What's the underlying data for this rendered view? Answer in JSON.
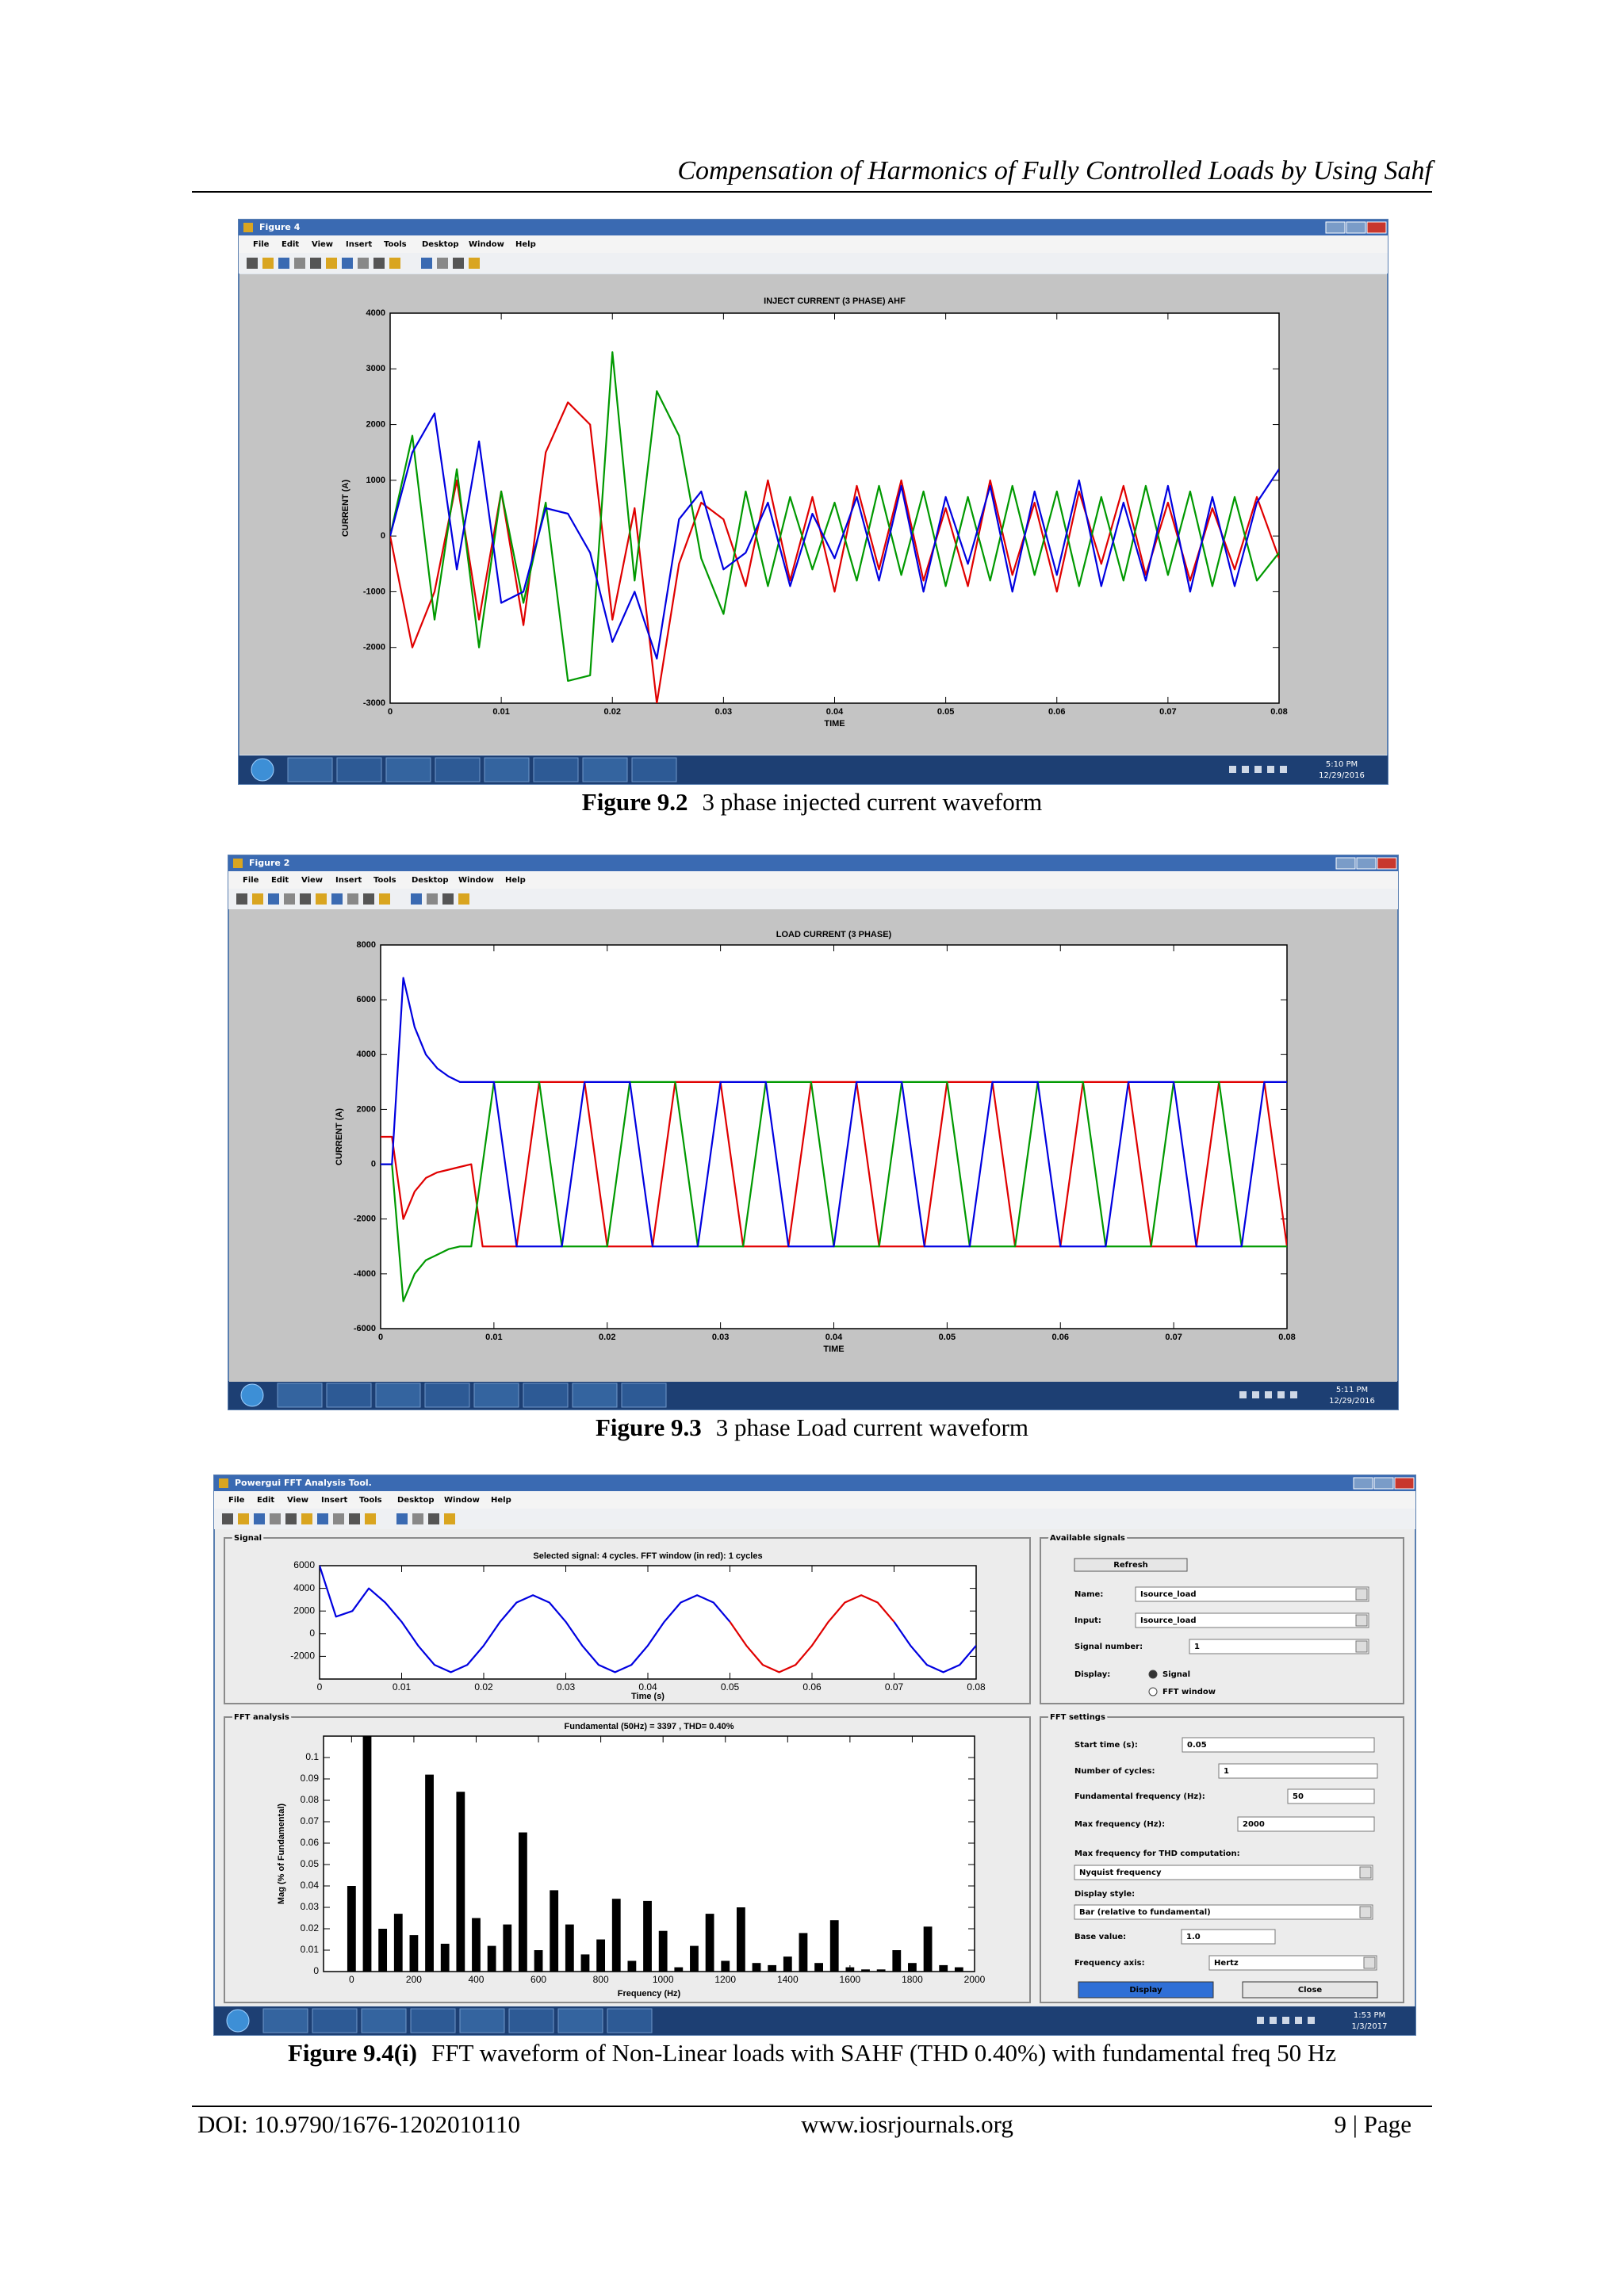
{
  "header": {
    "title": "Compensation of Harmonics of Fully Controlled Loads by Using Sahf"
  },
  "menu": [
    "File",
    "Edit",
    "View",
    "Insert",
    "Tools",
    "Desktop",
    "Window",
    "Help"
  ],
  "windows": [
    {
      "title": "Figure 4",
      "time": "5:10 PM",
      "date": "12/29/2016"
    },
    {
      "title": "Figure 2",
      "time": "5:11 PM",
      "date": "12/29/2016"
    },
    {
      "title": "Powergui FFT Analysis Tool.",
      "time": "1:53 PM",
      "date": "1/3/2017"
    }
  ],
  "chart_data": [
    {
      "type": "line",
      "title": "INJECT CURRENT (3 PHASE) AHF",
      "xlabel": "TIME",
      "ylabel": "CURRENT (A)",
      "x": [
        0,
        0.002,
        0.004,
        0.006,
        0.008,
        0.01,
        0.012,
        0.014,
        0.016,
        0.018,
        0.02,
        0.022,
        0.024,
        0.026,
        0.028,
        0.03,
        0.032,
        0.034,
        0.036,
        0.038,
        0.04,
        0.042,
        0.044,
        0.046,
        0.048,
        0.05,
        0.052,
        0.054,
        0.056,
        0.058,
        0.06,
        0.062,
        0.064,
        0.066,
        0.068,
        0.07,
        0.072,
        0.074,
        0.076,
        0.078,
        0.08
      ],
      "series": [
        {
          "color": "#e00000",
          "values": [
            0,
            -2000,
            -1000,
            1000,
            -1500,
            800,
            -1600,
            1500,
            2400,
            2000,
            -1500,
            500,
            -3000,
            -500,
            600,
            300,
            -900,
            1000,
            -800,
            700,
            -1000,
            900,
            -600,
            1000,
            -800,
            500,
            -900,
            1000,
            -700,
            600,
            -1000,
            800,
            -500,
            900,
            -700,
            600,
            -800,
            500,
            -600,
            700,
            -400
          ]
        },
        {
          "color": "#009900",
          "values": [
            0,
            1800,
            -1500,
            1200,
            -2000,
            800,
            -1200,
            600,
            -2600,
            -2500,
            3300,
            -800,
            2600,
            1800,
            -400,
            -1400,
            800,
            -900,
            700,
            -600,
            600,
            -800,
            900,
            -700,
            800,
            -900,
            700,
            -800,
            900,
            -700,
            800,
            -900,
            700,
            -800,
            900,
            -700,
            800,
            -900,
            700,
            -800,
            -300
          ]
        },
        {
          "color": "#0000e0",
          "values": [
            0,
            1500,
            2200,
            -600,
            1700,
            -1200,
            -1000,
            500,
            400,
            -300,
            -1900,
            -1000,
            -2200,
            300,
            800,
            -600,
            -300,
            600,
            -900,
            400,
            -400,
            700,
            -800,
            900,
            -1000,
            700,
            -500,
            900,
            -1000,
            800,
            -700,
            1000,
            -900,
            600,
            -800,
            900,
            -1000,
            700,
            -900,
            600,
            1200
          ]
        }
      ],
      "xlim": [
        0,
        0.08
      ],
      "ylim": [
        -3000,
        4000
      ],
      "xticks": [
        0,
        0.01,
        0.02,
        0.03,
        0.04,
        0.05,
        0.06,
        0.07,
        0.08
      ],
      "yticks": [
        -3000,
        -2000,
        -1000,
        0,
        1000,
        2000,
        3000,
        4000
      ]
    },
    {
      "type": "line",
      "title": "LOAD CURRENT (3 PHASE)",
      "xlabel": "TIME",
      "ylabel": "CURRENT (A)",
      "x": [
        0,
        0.001,
        0.002,
        0.003,
        0.004,
        0.005,
        0.006,
        0.007,
        0.008,
        0.009,
        0.01,
        0.011,
        0.012,
        0.013,
        0.014,
        0.015,
        0.016,
        0.017,
        0.018,
        0.019,
        0.02,
        0.021,
        0.022,
        0.023,
        0.024,
        0.025,
        0.026,
        0.027,
        0.028,
        0.029,
        0.03,
        0.031,
        0.032,
        0.033,
        0.034,
        0.035,
        0.036,
        0.037,
        0.038,
        0.039,
        0.04,
        0.041,
        0.042,
        0.043,
        0.044,
        0.045,
        0.046,
        0.047,
        0.048,
        0.049,
        0.05,
        0.051,
        0.052,
        0.053,
        0.054,
        0.055,
        0.056,
        0.057,
        0.058,
        0.059,
        0.06,
        0.061,
        0.062,
        0.063,
        0.064,
        0.065,
        0.066,
        0.067,
        0.068,
        0.069,
        0.07,
        0.071,
        0.072,
        0.073,
        0.074,
        0.075,
        0.076,
        0.077,
        0.078,
        0.079,
        0.08
      ],
      "series": [
        {
          "color": "#e00000",
          "values": [
            1000,
            1000,
            -2000,
            -1000,
            -500,
            -300,
            -200,
            -100,
            0,
            -3000,
            -3000,
            -3000,
            -3000,
            0,
            3000,
            3000,
            3000,
            3000,
            3000,
            0,
            -3000,
            -3000,
            -3000,
            -3000,
            -3000,
            0,
            3000,
            3000,
            3000,
            3000,
            3000,
            0,
            -3000,
            -3000,
            -3000,
            -3000,
            -3000,
            0,
            3000,
            3000,
            3000,
            3000,
            3000,
            0,
            -3000,
            -3000,
            -3000,
            -3000,
            -3000,
            0,
            3000,
            3000,
            3000,
            3000,
            3000,
            0,
            -3000,
            -3000,
            -3000,
            -3000,
            -3000,
            0,
            3000,
            3000,
            3000,
            3000,
            3000,
            0,
            -3000,
            -3000,
            -3000,
            -3000,
            -3000,
            0,
            3000,
            3000,
            3000,
            3000,
            3000,
            0,
            -3000
          ]
        },
        {
          "color": "#009900",
          "values": [
            0,
            0,
            -5000,
            -4000,
            -3500,
            -3300,
            -3100,
            -3000,
            -3000,
            0,
            3000,
            3000,
            3000,
            3000,
            3000,
            0,
            -3000,
            -3000,
            -3000,
            -3000,
            -3000,
            0,
            3000,
            3000,
            3000,
            3000,
            3000,
            0,
            -3000,
            -3000,
            -3000,
            -3000,
            -3000,
            0,
            3000,
            3000,
            3000,
            3000,
            3000,
            0,
            -3000,
            -3000,
            -3000,
            -3000,
            -3000,
            0,
            3000,
            3000,
            3000,
            3000,
            3000,
            0,
            -3000,
            -3000,
            -3000,
            -3000,
            -3000,
            0,
            3000,
            3000,
            3000,
            3000,
            3000,
            0,
            -3000,
            -3000,
            -3000,
            -3000,
            -3000,
            0,
            3000,
            3000,
            3000,
            3000,
            3000,
            0,
            -3000,
            -3000,
            -3000,
            -3000,
            -3000
          ]
        },
        {
          "color": "#0000e0",
          "values": [
            0,
            0,
            6800,
            5000,
            4000,
            3500,
            3200,
            3000,
            3000,
            3000,
            3000,
            0,
            -3000,
            -3000,
            -3000,
            -3000,
            -3000,
            0,
            3000,
            3000,
            3000,
            3000,
            3000,
            0,
            -3000,
            -3000,
            -3000,
            -3000,
            -3000,
            0,
            3000,
            3000,
            3000,
            3000,
            3000,
            0,
            -3000,
            -3000,
            -3000,
            -3000,
            -3000,
            0,
            3000,
            3000,
            3000,
            3000,
            3000,
            0,
            -3000,
            -3000,
            -3000,
            -3000,
            -3000,
            0,
            3000,
            3000,
            3000,
            3000,
            3000,
            0,
            -3000,
            -3000,
            -3000,
            -3000,
            -3000,
            0,
            3000,
            3000,
            3000,
            3000,
            3000,
            0,
            -3000,
            -3000,
            -3000,
            -3000,
            -3000,
            0,
            3000,
            3000,
            3000
          ]
        }
      ],
      "xlim": [
        0,
        0.08
      ],
      "ylim": [
        -6000,
        8000
      ],
      "xticks": [
        0,
        0.01,
        0.02,
        0.03,
        0.04,
        0.05,
        0.06,
        0.07,
        0.08
      ],
      "yticks": [
        -6000,
        -4000,
        -2000,
        0,
        2000,
        4000,
        6000,
        8000
      ]
    },
    {
      "type": "line",
      "title": "Selected signal: 4 cycles. FFT window (in red): 1 cycles",
      "xlabel": "Time (s)",
      "x": [
        0,
        0.002,
        0.004,
        0.006,
        0.008,
        0.01,
        0.012,
        0.014,
        0.016,
        0.018,
        0.02,
        0.022,
        0.024,
        0.026,
        0.028,
        0.03,
        0.032,
        0.034,
        0.036,
        0.038,
        0.04,
        0.042,
        0.044,
        0.046,
        0.048,
        0.05,
        0.052,
        0.054,
        0.056,
        0.058,
        0.06,
        0.062,
        0.064,
        0.066,
        0.068,
        0.07,
        0.072,
        0.074,
        0.076,
        0.078,
        0.08
      ],
      "series": [
        {
          "color": "#0000e0",
          "values": [
            6000,
            1500,
            2000,
            4000,
            2750,
            1050,
            -1050,
            -2750,
            -3400,
            -2750,
            -1050,
            1050,
            2750,
            3400,
            2750,
            1050,
            -1050,
            -2750,
            -3400,
            -2750,
            -1050,
            1050,
            2750,
            3400,
            2750,
            1050,
            null,
            null,
            null,
            null,
            null,
            null,
            null,
            null,
            null,
            1050,
            -1050,
            -2750,
            -3400,
            -2750,
            -1050
          ]
        },
        {
          "color": "#e00000",
          "values": [
            null,
            null,
            null,
            null,
            null,
            null,
            null,
            null,
            null,
            null,
            null,
            null,
            null,
            null,
            null,
            null,
            null,
            null,
            null,
            null,
            null,
            null,
            null,
            null,
            null,
            1050,
            -1050,
            -2750,
            -3400,
            -2750,
            -1050,
            1050,
            2750,
            3400,
            2750,
            1050,
            null,
            null,
            null,
            null,
            null
          ]
        }
      ],
      "xlim": [
        0,
        0.08
      ],
      "ylim": [
        -4000,
        6000
      ],
      "xticks": [
        0,
        0.01,
        0.02,
        0.03,
        0.04,
        0.05,
        0.06,
        0.07,
        0.08
      ],
      "yticks": [
        -2000,
        0,
        2000,
        4000,
        6000
      ]
    },
    {
      "type": "bar",
      "title": "Fundamental (50Hz) = 3397 , THD= 0.40%",
      "xlabel": "Frequency (Hz)",
      "ylabel": "Mag (% of Fundamental)",
      "x": [
        0,
        50,
        100,
        150,
        200,
        250,
        300,
        350,
        400,
        450,
        500,
        550,
        600,
        650,
        700,
        750,
        800,
        850,
        900,
        950,
        1000,
        1050,
        1100,
        1150,
        1200,
        1250,
        1300,
        1350,
        1400,
        1450,
        1500,
        1550,
        1600,
        1650,
        1700,
        1750,
        1800,
        1850,
        1900,
        1950,
        2000
      ],
      "values": [
        0.04,
        0.11,
        0.02,
        0.027,
        0.017,
        0.092,
        0.013,
        0.084,
        0.025,
        0.012,
        0.022,
        0.065,
        0.01,
        0.038,
        0.022,
        0.008,
        0.015,
        0.034,
        0.005,
        0.033,
        0.019,
        0.002,
        0.012,
        0.027,
        0.005,
        0.03,
        0.004,
        0.003,
        0.007,
        0.018,
        0.004,
        0.024,
        0.002,
        0.001,
        0.001,
        0.01,
        0.004,
        0.021,
        0.003,
        0.002,
        0
      ],
      "color": "#000000",
      "xlim": [
        -90,
        2000
      ],
      "ylim": [
        0,
        0.11
      ],
      "xticks": [
        0,
        200,
        400,
        600,
        800,
        1000,
        1200,
        1400,
        1600,
        1800,
        2000
      ],
      "yticks": [
        0,
        0.01,
        0.02,
        0.03,
        0.04,
        0.05,
        0.06,
        0.07,
        0.08,
        0.09,
        0.1
      ]
    }
  ],
  "fft_tool": {
    "panels": [
      "Signal",
      "Available signals",
      "FFT analysis",
      "FFT settings"
    ],
    "refresh": "Refresh",
    "signals": [
      {
        "label": "Name:",
        "value": "Isource_load"
      },
      {
        "label": "Input:",
        "value": "Isource_load"
      },
      {
        "label": "Signal number:",
        "value": "1"
      }
    ],
    "display_label": "Display:",
    "display_options": [
      "Signal",
      "FFT window"
    ],
    "settings": [
      {
        "label": "Start time (s):",
        "value": "0.05"
      },
      {
        "label": "Number of cycles:",
        "value": "1"
      },
      {
        "label": "Fundamental frequency (Hz):",
        "value": "50"
      },
      {
        "label": "Max frequency (Hz):",
        "value": "2000"
      },
      {
        "label": "Max frequency for THD computation:",
        "value": "Nyquist frequency"
      },
      {
        "label": "Display style:",
        "value": "Bar (relative to fundamental)"
      },
      {
        "label": "Base value:",
        "value": "1.0"
      },
      {
        "label": "Frequency axis:",
        "value": "Hertz"
      }
    ],
    "buttons": [
      "Display",
      "Close"
    ]
  },
  "captions": [
    {
      "label": "Figure 9.2",
      "text": "3 phase injected current waveform"
    },
    {
      "label": "Figure 9.3",
      "text": "3 phase Load current waveform"
    },
    {
      "label": "Figure 9.4(i)",
      "text": "FFT waveform of Non-Linear loads with SAHF (THD 0.40%) with fundamental freq 50 Hz"
    }
  ],
  "footer": {
    "doi": "DOI: 10.9790/1676-1202010110",
    "site": "www.iosrjournals.org",
    "page": "9 | Page"
  }
}
